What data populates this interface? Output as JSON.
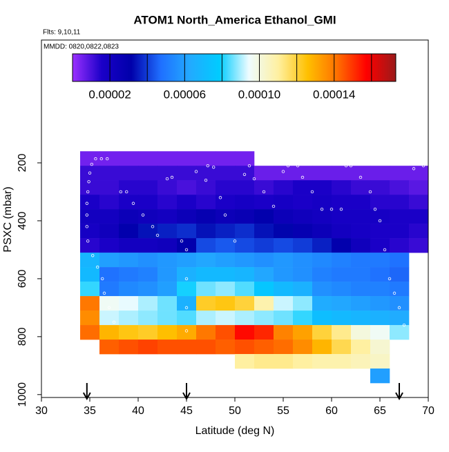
{
  "chart_data": {
    "type": "heatmap",
    "title": "ATOM1 North_America Ethanol_GMI",
    "annotations": [
      "Flts: 9,10,11",
      "MMDD: 0820,0822,0823"
    ],
    "xlabel": "Latitude (deg N)",
    "ylabel": "PSXC (mbar)",
    "xlim": [
      30,
      70
    ],
    "xticks": [
      30,
      35,
      40,
      45,
      50,
      55,
      60,
      65,
      70
    ],
    "ylim": [
      1010,
      -224
    ],
    "yticks": [
      200,
      400,
      600,
      800,
      1000
    ],
    "x_edges": [
      34,
      36,
      38,
      40,
      42,
      44,
      46,
      48,
      50,
      52,
      54,
      56,
      58,
      60,
      62,
      64,
      66,
      68,
      70
    ],
    "y_edges": [
      160,
      210,
      260,
      310,
      360,
      410,
      460,
      510,
      560,
      610,
      660,
      710,
      760,
      810,
      860,
      910,
      960
    ],
    "z": [
      [
        5e-06,
        5e-06,
        5e-06,
        5e-06,
        5e-06,
        5e-06,
        5e-06,
        5e-06,
        5e-06,
        null,
        null,
        null,
        null,
        null,
        null,
        null,
        null,
        null
      ],
      [
        1.2e-05,
        1.2e-05,
        1.2e-05,
        1.2e-05,
        1.2e-05,
        1.2e-05,
        1.2e-05,
        1.2e-05,
        1.2e-05,
        6e-06,
        6e-06,
        6e-06,
        6e-06,
        6e-06,
        6e-06,
        6e-06,
        6e-06,
        6e-06
      ],
      [
        1.2e-05,
        1.2e-05,
        1.4e-05,
        1.4e-05,
        1.2e-05,
        1e-05,
        1.2e-05,
        1.4e-05,
        1.4e-05,
        1.2e-05,
        1.4e-05,
        1.6e-05,
        1.6e-05,
        1.4e-05,
        1.2e-05,
        1.2e-05,
        1e-05,
        8e-06
      ],
      [
        1.6e-05,
        1.4e-05,
        1.6e-05,
        1.6e-05,
        1.4e-05,
        1.6e-05,
        1.4e-05,
        1.6e-05,
        1.8e-05,
        1.6e-05,
        1.8e-05,
        1.6e-05,
        1.8e-05,
        1.6e-05,
        1.6e-05,
        1.4e-05,
        1.4e-05,
        1.2e-05
      ],
      [
        2e-05,
        2e-05,
        2.4e-05,
        2.2e-05,
        2e-05,
        2.4e-05,
        2.8e-05,
        2.4e-05,
        2.6e-05,
        3e-05,
        2.4e-05,
        2.2e-05,
        2e-05,
        1.8e-05,
        1.8e-05,
        1.8e-05,
        1.6e-05,
        1.6e-05
      ],
      [
        1.8e-05,
        2.2e-05,
        3e-05,
        3.4e-05,
        3.6e-05,
        3.8e-05,
        3.4e-05,
        3.6e-05,
        3.8e-05,
        3.4e-05,
        3.2e-05,
        2.8e-05,
        2.4e-05,
        2e-05,
        1.8e-05,
        1.6e-05,
        1.6e-05,
        1.4e-05
      ],
      [
        1.4e-05,
        1.6e-05,
        2e-05,
        2e-05,
        2.2e-05,
        3e-05,
        4.2e-05,
        4.4e-05,
        4.2e-05,
        4e-05,
        4.2e-05,
        4e-05,
        3.6e-05,
        3e-05,
        2.2e-05,
        1.6e-05,
        1.4e-05,
        1.2e-05
      ],
      [
        6.8e-05,
        6e-05,
        5.8e-05,
        5.6e-05,
        5.8e-05,
        6e-05,
        6.2e-05,
        6e-05,
        5.8e-05,
        5.6e-05,
        5.8e-05,
        5.6e-05,
        5.4e-05,
        5.2e-05,
        5e-05,
        5e-05,
        4.8e-05,
        null
      ],
      [
        7e-05,
        4.8e-05,
        5e-05,
        5.2e-05,
        5.8e-05,
        6.6e-05,
        7e-05,
        7e-05,
        6.8e-05,
        6.2e-05,
        5.8e-05,
        5.6e-05,
        5.2e-05,
        5e-05,
        5e-05,
        4.8e-05,
        4.6e-05,
        null
      ],
      [
        8.2e-05,
        5e-05,
        5.4e-05,
        5.6e-05,
        6e-05,
        8e-05,
        8.6e-05,
        8.8e-05,
        8.4e-05,
        7.6e-05,
        7e-05,
        6.6e-05,
        5.6e-05,
        5.4e-05,
        5.2e-05,
        5.2e-05,
        5e-05,
        null
      ],
      [
        0.00014,
        9.6e-05,
        9.4e-05,
        9e-05,
        8.6e-05,
        6.6e-05,
        0.000122,
        0.000124,
        0.00012,
        0.000108,
        9.2e-05,
        8.8e-05,
        6.4e-05,
        6.2e-05,
        6e-05,
        5.8e-05,
        5.6e-05,
        null
      ],
      [
        0.000136,
        9.2e-05,
        9e-05,
        8.8e-05,
        8.6e-05,
        8.4e-05,
        9e-05,
        9.2e-05,
        9e-05,
        8.8e-05,
        8.6e-05,
        8.2e-05,
        7.2e-05,
        7e-05,
        6.8e-05,
        6.6e-05,
        6.4e-05,
        null
      ],
      [
        0.000142,
        0.000128,
        0.000124,
        0.000122,
        0.000126,
        0.00013,
        0.00014,
        0.000146,
        0.000156,
        0.000152,
        0.000138,
        0.000132,
        0.00012,
        0.000112,
        0.0001,
        9.6e-05,
        8.8e-05,
        null
      ],
      [
        null,
        0.000144,
        0.000146,
        0.000148,
        0.000146,
        0.000146,
        0.000146,
        0.000144,
        0.000146,
        0.000144,
        0.000142,
        0.000136,
        0.000128,
        0.000118,
        0.00011,
        0.000102,
        null,
        null
      ],
      [
        null,
        null,
        null,
        null,
        null,
        null,
        null,
        null,
        0.00011,
        0.000112,
        0.000112,
        0.00011,
        0.000108,
        0.000108,
        0.000106,
        0.000104,
        null,
        null
      ],
      [
        null,
        null,
        null,
        null,
        null,
        null,
        null,
        null,
        null,
        null,
        null,
        null,
        null,
        null,
        null,
        6e-05,
        null,
        null
      ]
    ],
    "colormap": [
      "#9b30ff",
      "#1a00c8",
      "#0000aa",
      "#1f6fff",
      "#22aaff",
      "#00ccff",
      "#eefcff",
      "#fff0a0",
      "#ffc000",
      "#ff7000",
      "#ff0000",
      "#9a1a1a"
    ],
    "colorbar_lim": [
      0,
      0.000173
    ],
    "colorbar_breaks": [
      2e-05,
      4e-05,
      6e-05,
      8e-05,
      0.0001,
      0.00012,
      0.00014,
      0.00016
    ],
    "colorbar_ticks": [
      {
        "value": 2e-05,
        "label": "0.00002"
      },
      {
        "value": 6e-05,
        "label": "0.00006"
      },
      {
        "value": 0.0001,
        "label": "0.00010"
      },
      {
        "value": 0.00014,
        "label": "0.00014"
      }
    ],
    "track": {
      "x": [
        35.6,
        36.2,
        36.8,
        35.2,
        35.0,
        34.9,
        34.8,
        34.7,
        34.7,
        34.7,
        34.8,
        35.3,
        35.8,
        36.3,
        36.5,
        37,
        37.5,
        38.2,
        38.8,
        39.5,
        40.5,
        41.5,
        42,
        43,
        43.5,
        44.5,
        45,
        45,
        45,
        45,
        46,
        47,
        47.2,
        47.8,
        48.5,
        49,
        50,
        51,
        51.5,
        52,
        53,
        54,
        55,
        55.5,
        56.5,
        57,
        58,
        59,
        60,
        61,
        61.5,
        62,
        63,
        64,
        64.5,
        65,
        65.5,
        66,
        66.5,
        67,
        67.5,
        68.5,
        69.5
      ],
      "y": [
        186,
        186,
        186,
        205,
        235,
        265,
        300,
        340,
        380,
        420,
        470,
        520,
        560,
        600,
        650,
        700,
        750,
        300,
        300,
        340,
        380,
        420,
        450,
        255,
        250,
        470,
        500,
        600,
        700,
        780,
        230,
        260,
        210,
        215,
        320,
        380,
        470,
        240,
        210,
        255,
        300,
        350,
        230,
        210,
        210,
        250,
        300,
        360,
        360,
        360,
        210,
        210,
        250,
        300,
        360,
        400,
        500,
        600,
        650,
        700,
        760,
        220,
        210
      ]
    },
    "arrows": [
      34.7,
      45,
      67
    ]
  }
}
